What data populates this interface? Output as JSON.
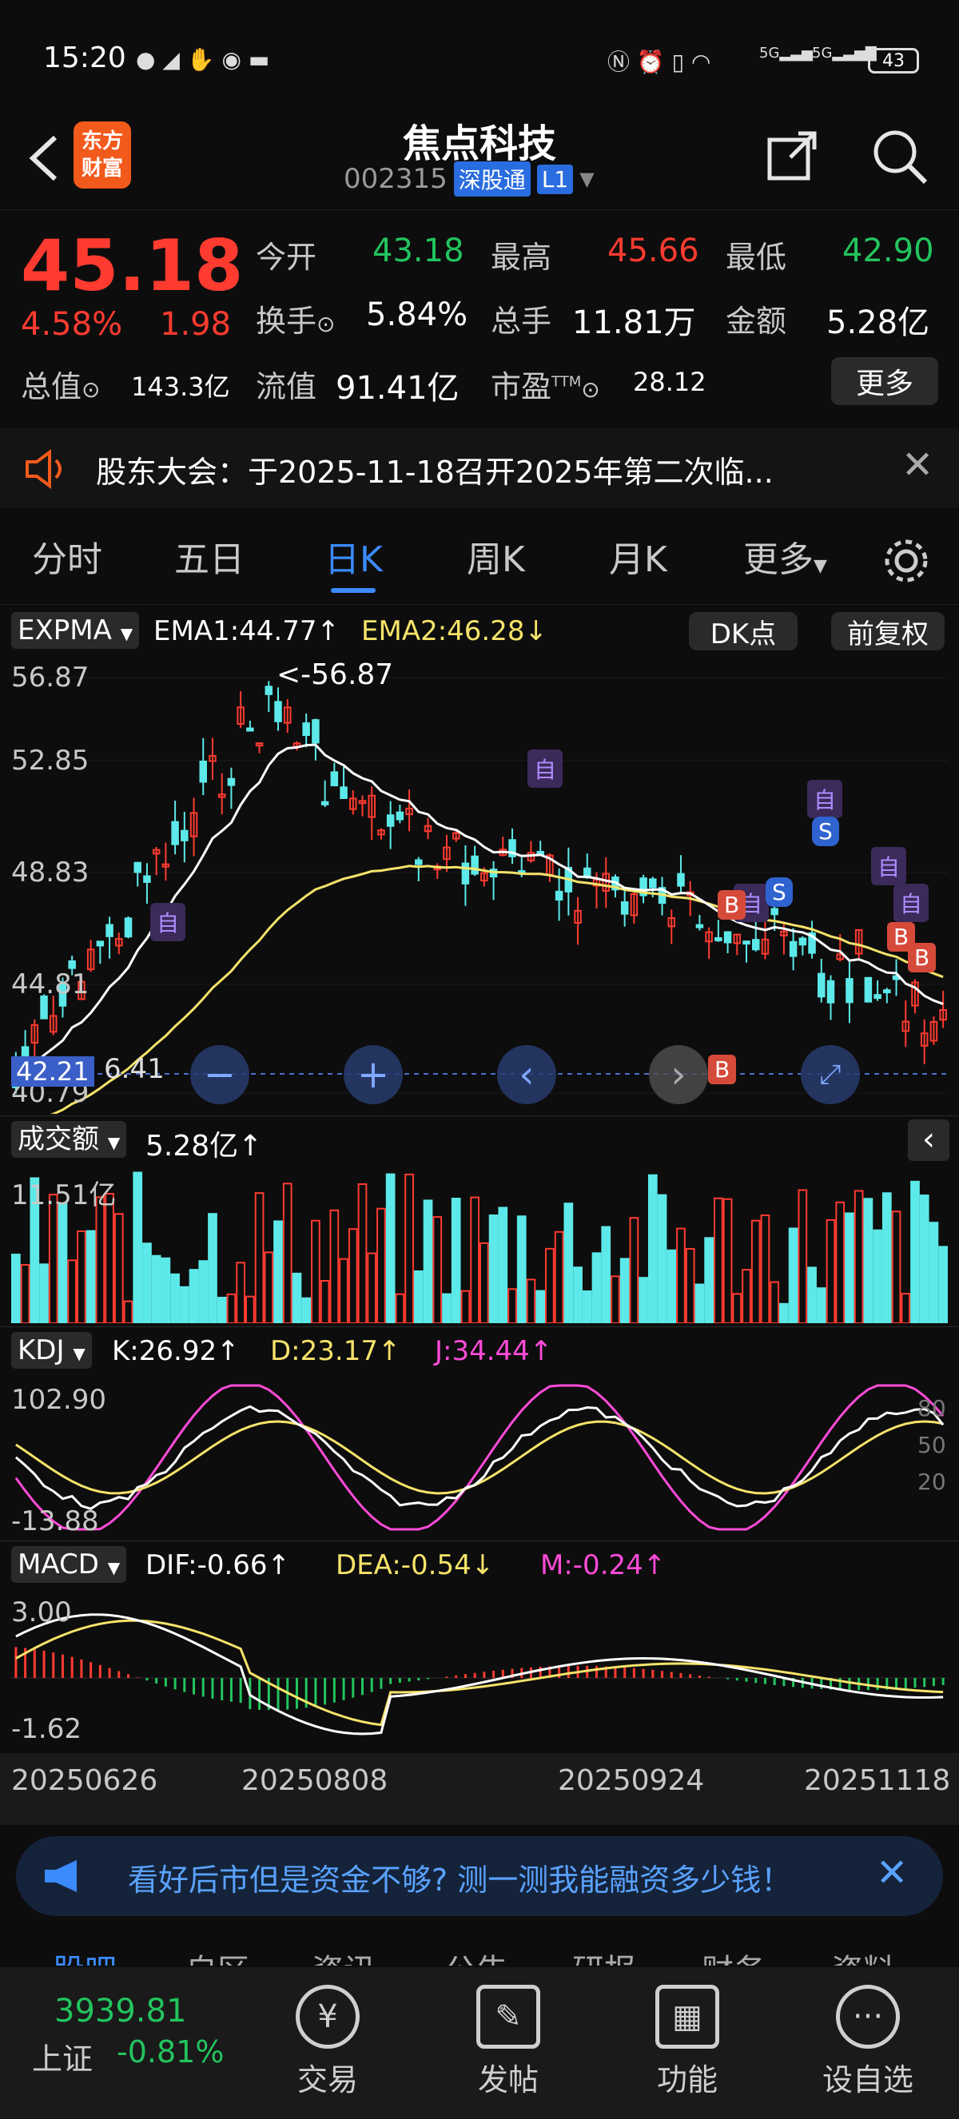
{
  "status_bar": {
    "time": "15:20",
    "battery": "43",
    "net1": "5G",
    "net2": "5G"
  },
  "header": {
    "app_logo_line1": "东方",
    "app_logo_line2": "财富",
    "stock_name": "焦点科技",
    "stock_code": "002315",
    "market_tag": "深股通",
    "level_tag": "L1"
  },
  "quote": {
    "price": "45.18",
    "change_pct": "4.58%",
    "change": "1.98",
    "open_label": "今开",
    "open_value": "43.18",
    "high_label": "最高",
    "high_value": "45.66",
    "low_label": "最低",
    "low_value": "42.90",
    "turnover_label": "换手",
    "turnover_value": "5.84%",
    "volume_label": "总手",
    "volume_value": "11.81万",
    "amount_label": "金额",
    "amount_value": "5.28亿",
    "mktcap_label": "总值",
    "mktcap_value": "143.3亿",
    "float_label": "流值",
    "float_value": "91.41亿",
    "pe_label": "市盈",
    "pe_sup": "TTM",
    "pe_value": "28.12",
    "more_label": "更多"
  },
  "notice": {
    "text": "股东大会：于2025-11-18召开2025年第二次临..."
  },
  "tabs": {
    "items": [
      "分时",
      "五日",
      "日K",
      "周K",
      "月K",
      "更多"
    ],
    "active": "日K"
  },
  "kline": {
    "indicator": "EXPMA",
    "ema1": "EMA1:44.77↑",
    "ema2": "EMA2:46.28↓",
    "dk_button": "DK点",
    "adjust": "前复权",
    "y_top": "56.87",
    "y_2": "52.85",
    "y_3": "48.83",
    "y_4": "44.81",
    "y_bottom": "40.79",
    "current_tag": "42.21",
    "low_marker": "6.41",
    "max_annotation": "<-56.87",
    "markers": {
      "zi": "自",
      "b": "B",
      "s": "S"
    }
  },
  "volume": {
    "label": "成交额",
    "value": "5.28亿↑",
    "max": "11.51亿"
  },
  "kdj": {
    "label": "KDJ",
    "k": "K:26.92↑",
    "d": "D:23.17↑",
    "j": "J:34.44↑",
    "y_top": "102.90",
    "y_bottom": "-13.88",
    "r80": "80",
    "r50": "50",
    "r20": "20"
  },
  "macd": {
    "label": "MACD",
    "dif": "DIF:-0.66↑",
    "dea": "DEA:-0.54↓",
    "m": "M:-0.24↑",
    "y_top": "3.00",
    "y_bottom": "-1.62"
  },
  "dates": [
    "20250626",
    "20250808",
    "20250924",
    "20251118"
  ],
  "ad_banner": {
    "text": "看好后市但是资金不够? 测一测我能融资多少钱！"
  },
  "sub_tabs_partial": [
    "股吧",
    "自区",
    "资讯",
    "公告",
    "研报",
    "财务",
    "资料"
  ],
  "bottom_nav": {
    "index_value": "3939.81",
    "index_name": "上证",
    "index_change": "-0.81%",
    "items": [
      "交易",
      "发帖",
      "功能",
      "设自选"
    ]
  },
  "colors": {
    "up": "#ff3b30",
    "down": "#22c55e",
    "accent": "#3b8bff",
    "ema1": "#ffffff",
    "ema2": "#f6e36a",
    "j_line": "#ff4bd8",
    "vol_down": "#5de9e9"
  }
}
